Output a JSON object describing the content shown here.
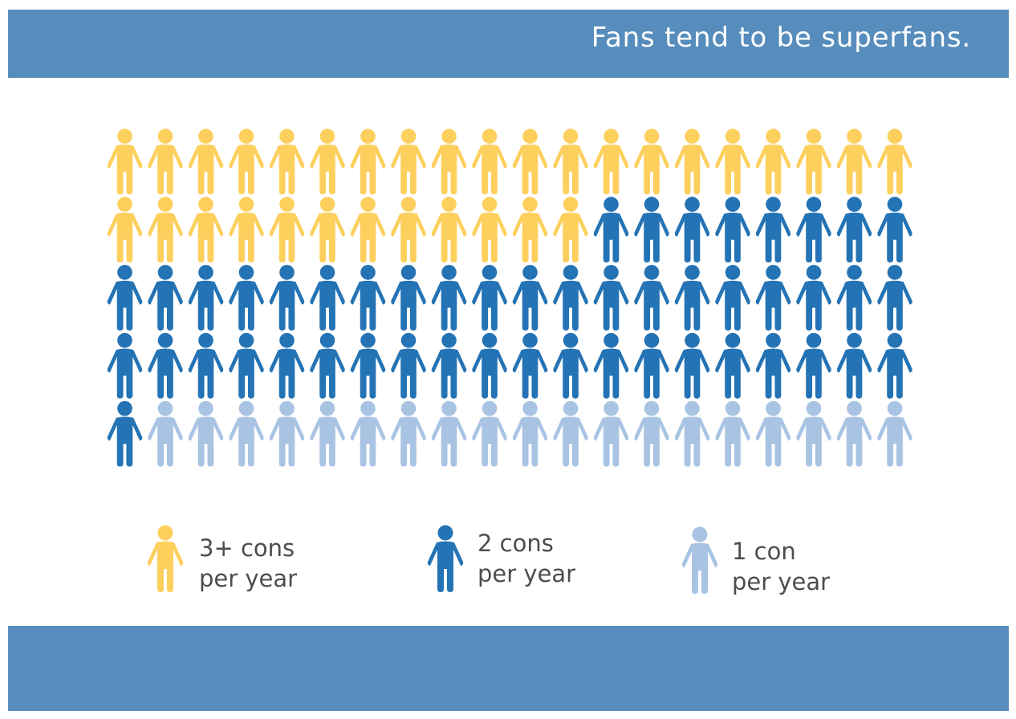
{
  "header": {
    "title": "Fans tend to be superfans."
  },
  "colors": {
    "band": "#578dbd",
    "three_plus": "#fdd05e",
    "two": "#2473b5",
    "one": "#a9c4e3",
    "text": "#4d4d4d"
  },
  "icon": "person-icon",
  "chart_data": {
    "type": "pictogram",
    "unit": "person",
    "total": 100,
    "series": [
      {
        "name": "3+ cons per year",
        "count": 32,
        "color": "#fdd05e"
      },
      {
        "name": "2 cons per year",
        "count": 49,
        "color": "#2473b5"
      },
      {
        "name": "1 con per year",
        "count": 19,
        "color": "#a9c4e3"
      }
    ]
  },
  "legend": [
    {
      "line1": "3+ cons",
      "line2": "per year",
      "color": "#fdd05e"
    },
    {
      "line1": "2 cons",
      "line2": "per year",
      "color": "#2473b5"
    },
    {
      "line1": "1 con",
      "line2": "per year",
      "color": "#a9c4e3"
    }
  ]
}
